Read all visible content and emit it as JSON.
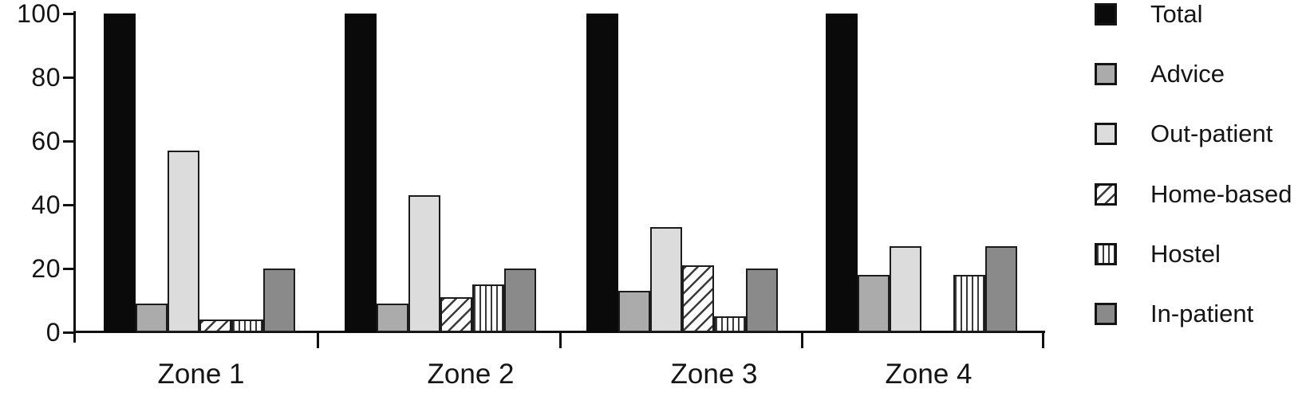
{
  "chart_data": {
    "type": "bar",
    "title": "",
    "xlabel": "",
    "ylabel": "",
    "categories": [
      "Zone 1",
      "Zone 2",
      "Zone 3",
      "Zone 4"
    ],
    "series": [
      {
        "name": "Total",
        "pattern": "solid",
        "fill": "#0a0a0a",
        "values": [
          100,
          100,
          100,
          100
        ]
      },
      {
        "name": "Advice",
        "pattern": "solid",
        "fill": "#ababab",
        "values": [
          9,
          9,
          13,
          18
        ]
      },
      {
        "name": "Out-patient",
        "pattern": "solid",
        "fill": "#dcdcdc",
        "values": [
          57,
          43,
          33,
          27
        ]
      },
      {
        "name": "Home-based",
        "pattern": "diagonal-hatch",
        "fill": "#ffffff",
        "values": [
          4,
          11,
          21,
          0
        ]
      },
      {
        "name": "Hostel",
        "pattern": "vertical-lines",
        "fill": "#ffffff",
        "values": [
          4,
          15,
          5,
          18
        ]
      },
      {
        "name": "In-patient",
        "pattern": "solid",
        "fill": "#8a8a8a",
        "values": [
          20,
          20,
          20,
          27
        ]
      }
    ],
    "ylim": [
      0,
      100
    ],
    "yticks": [
      0,
      20,
      40,
      60,
      80,
      100
    ],
    "grid": false,
    "legend_position": "right",
    "colors": {
      "axis": "#101010",
      "text": "#151515",
      "total": "#0a0a0a",
      "advice": "#ababab",
      "out_patient": "#dcdcdc",
      "in_patient": "#8a8a8a",
      "hatch_line": "#3a3a3a",
      "background": "#ffffff"
    }
  }
}
